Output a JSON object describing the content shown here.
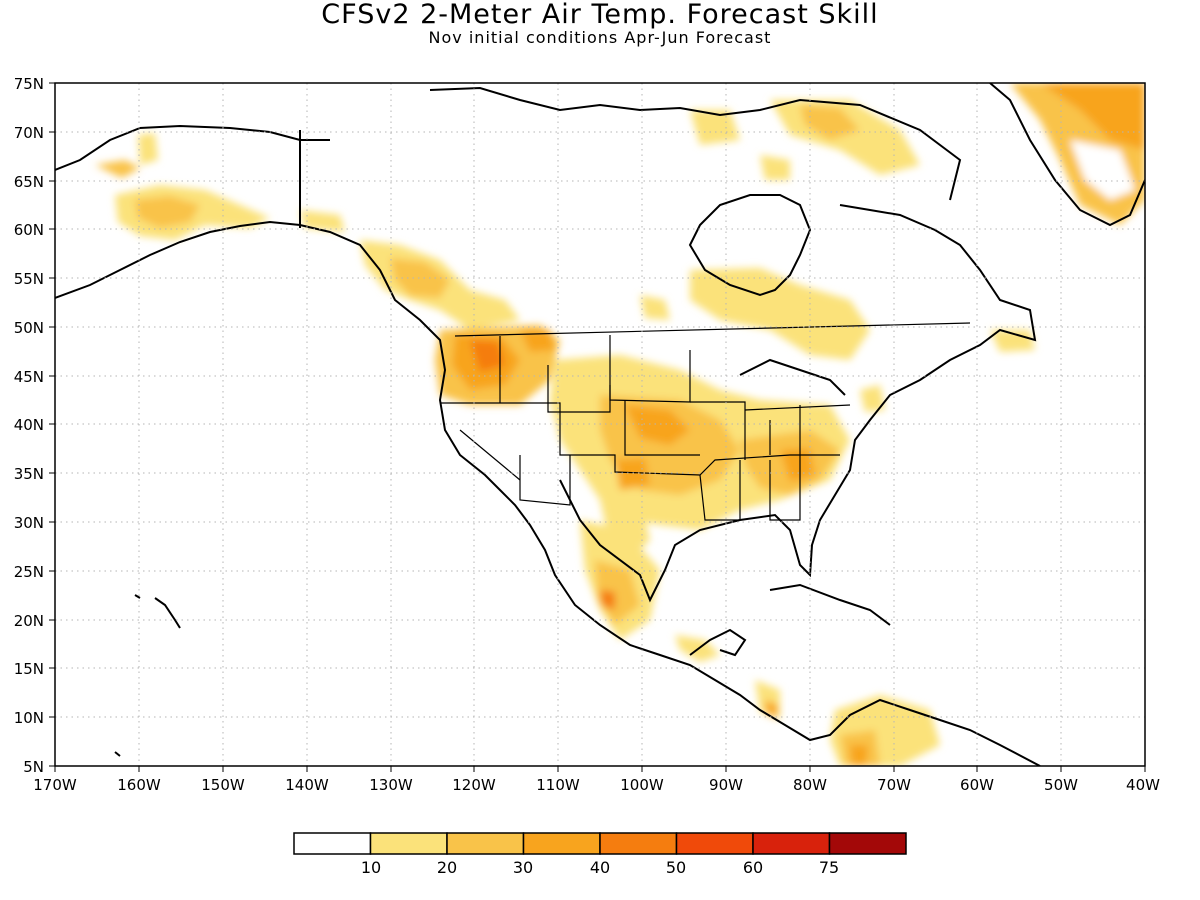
{
  "title": "CFSv2 2-Meter Air Temp. Forecast Skill",
  "subtitle": "Nov initial conditions   Apr-Jun Forecast",
  "map": {
    "lon_range": [
      -170,
      -40
    ],
    "lat_range": [
      5,
      75
    ],
    "x_tick_labels": [
      "170W",
      "160W",
      "150W",
      "140W",
      "130W",
      "120W",
      "110W",
      "100W",
      "90W",
      "80W",
      "70W",
      "60W",
      "50W",
      "40W"
    ],
    "y_tick_labels": [
      "75N",
      "70N",
      "65N",
      "60N",
      "55N",
      "50N",
      "45N",
      "40N",
      "35N",
      "30N",
      "25N",
      "20N",
      "15N",
      "10N",
      "5N"
    ],
    "gridlines": "dotted",
    "land_outline_color": "#000000"
  },
  "colorbar": {
    "colors": [
      "#ffffff",
      "#fbe27a",
      "#f9c349",
      "#f8a41e",
      "#f57d0f",
      "#f04a0a",
      "#d8220c",
      "#a30808"
    ],
    "labels": [
      "10",
      "20",
      "30",
      "40",
      "50",
      "60",
      "75"
    ]
  }
}
